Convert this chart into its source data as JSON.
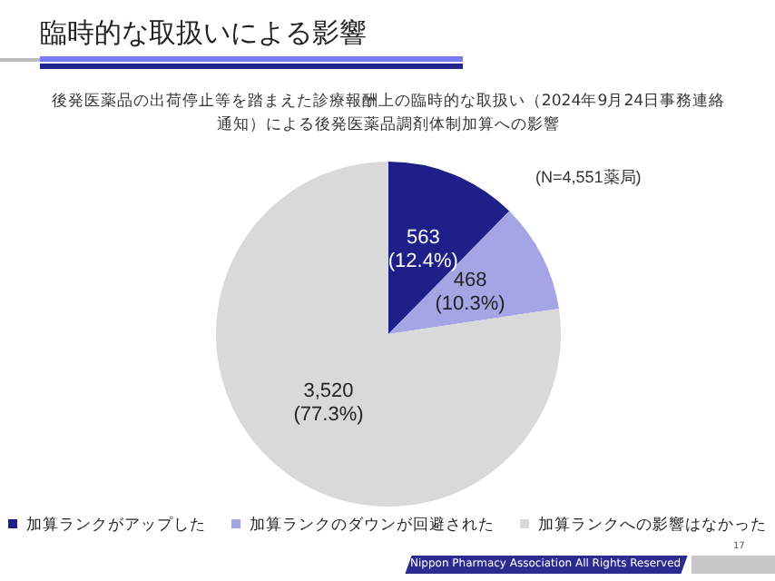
{
  "chart_data": {
    "type": "pie",
    "title": "臨時的な取扱いによる影響",
    "subtitle": "後発医薬品の出荷停止等を踏まえた診療報酬上の臨時的な取扱い（2024年9月24日事務連絡通知）による後発医薬品調剤体制加算への影響",
    "categories": [
      "加算ランクがアップした",
      "加算ランクのダウンが回避された",
      "加算ランクへの影響はなかった"
    ],
    "values": [
      563,
      468,
      3520
    ],
    "colors": [
      "#1f1f8a",
      "#a5a5e6",
      "#d9d9d9"
    ],
    "value_labels": [
      "563\n(12.4%)",
      "468\n(10.3%)",
      "3,520\n(77.3%)"
    ],
    "legend": "bottom",
    "annotations": [
      "(N=4,551薬局)",
      "Nippon Pharmacy Association All Rights Reserved",
      "17"
    ]
  }
}
